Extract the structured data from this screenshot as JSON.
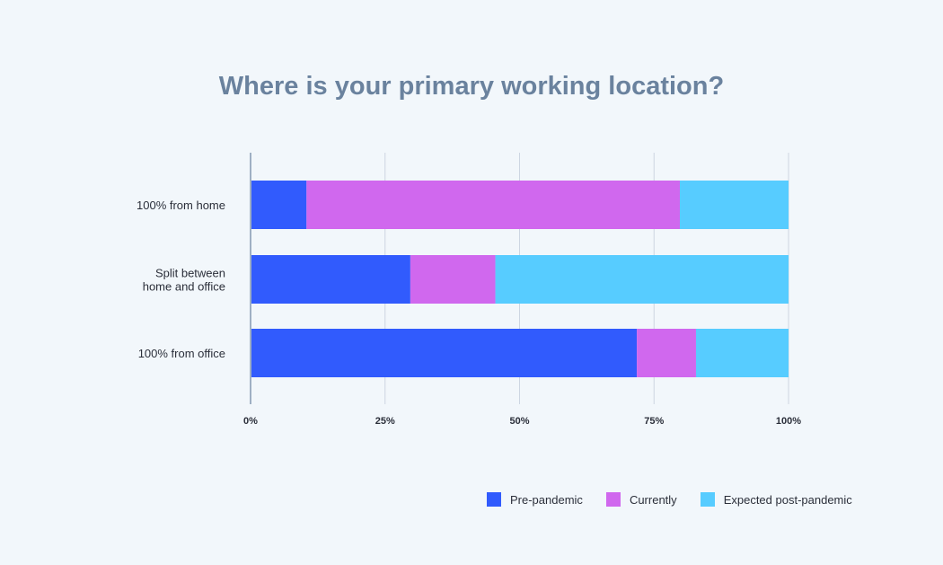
{
  "chart_data": {
    "type": "bar",
    "orientation": "horizontal",
    "stacked": true,
    "title": "Where is your primary working location?",
    "categories": [
      "100% from home",
      "Split between home and office",
      "100% from office"
    ],
    "category_lines": [
      [
        "100% from home"
      ],
      [
        "Split between",
        "home and office"
      ],
      [
        "100% from office"
      ]
    ],
    "series": [
      {
        "name": "Pre-pandemic",
        "color": "#315bfd",
        "values": [
          10.4,
          29.7,
          71.8
        ]
      },
      {
        "name": "Currently",
        "color": "#d068ee",
        "values": [
          69.4,
          15.8,
          11.0
        ]
      },
      {
        "name": "Expected post-pandemic",
        "color": "#57ccff",
        "values": [
          20.2,
          54.5,
          17.2
        ]
      }
    ],
    "xlim": [
      0,
      100
    ],
    "ticks": [
      0,
      25,
      50,
      75,
      100
    ],
    "tick_labels": [
      "0%",
      "25%",
      "50%",
      "75%",
      "100%"
    ],
    "grid": true,
    "legend": "bottom-right"
  }
}
